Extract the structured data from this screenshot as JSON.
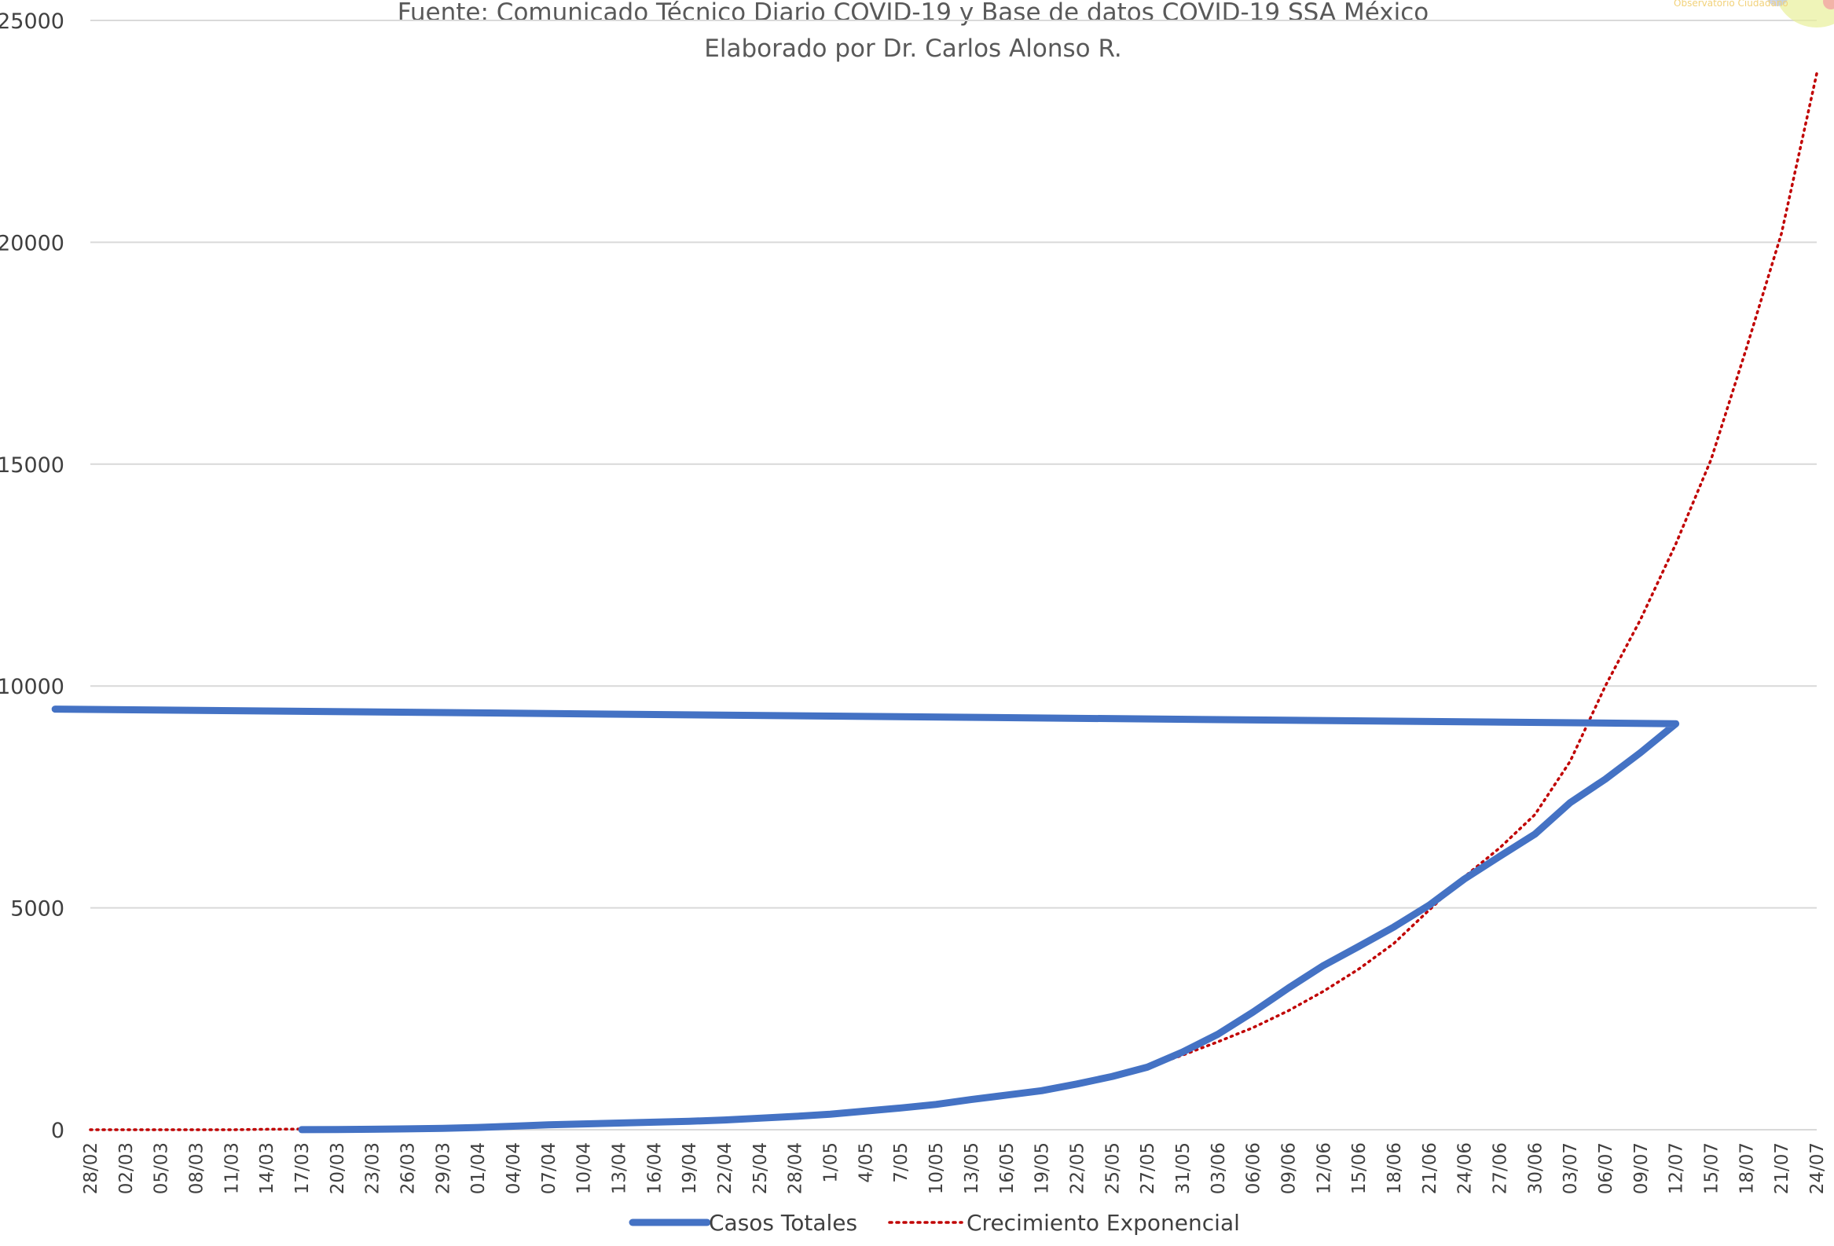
{
  "chart_data": {
    "type": "line",
    "subtitle_lines": [
      "Fuente: Comunicado Técnico Diario COVID-19 y Base de datos COVID-19 SSA México",
      "Elaborado por Dr. Carlos Alonso R."
    ],
    "ylim": [
      0,
      25000
    ],
    "yticks": [
      0,
      5000,
      10000,
      15000,
      20000,
      25000
    ],
    "grid": true,
    "legend_position": "bottom",
    "x_tick_labels": [
      "28/02",
      "02/03",
      "05/03",
      "08/03",
      "11/03",
      "14/03",
      "17/03",
      "20/03",
      "23/03",
      "26/03",
      "29/03",
      "01/04",
      "04/04",
      "07/04",
      "10/04",
      "13/04",
      "16/04",
      "19/04",
      "22/04",
      "25/04",
      "28/04",
      "1/05",
      "4/05",
      "7/05",
      "10/05",
      "13/05",
      "16/05",
      "19/05",
      "22/05",
      "25/05",
      "27/05",
      "31/05",
      "03/06",
      "06/06",
      "09/06",
      "12/06",
      "15/06",
      "18/06",
      "21/06",
      "24/06",
      "27/06",
      "30/06",
      "03/07",
      "06/07",
      "09/07",
      "12/07",
      "15/07",
      "18/07",
      "21/07",
      "24/07"
    ],
    "series": [
      {
        "name": "Casos Totales",
        "color": "#4472C4",
        "style": "solid",
        "points": [
          {
            "x": "17/03",
            "y": 2
          },
          {
            "x": "20/03",
            "y": 5
          },
          {
            "x": "23/03",
            "y": 10
          },
          {
            "x": "26/03",
            "y": 20
          },
          {
            "x": "29/03",
            "y": 30
          },
          {
            "x": "01/04",
            "y": 50
          },
          {
            "x": "04/04",
            "y": 80
          },
          {
            "x": "07/04",
            "y": 110
          },
          {
            "x": "10/04",
            "y": 130
          },
          {
            "x": "13/04",
            "y": 150
          },
          {
            "x": "16/04",
            "y": 170
          },
          {
            "x": "19/04",
            "y": 190
          },
          {
            "x": "22/04",
            "y": 220
          },
          {
            "x": "25/04",
            "y": 260
          },
          {
            "x": "28/04",
            "y": 300
          },
          {
            "x": "1/05",
            "y": 350
          },
          {
            "x": "4/05",
            "y": 420
          },
          {
            "x": "7/05",
            "y": 490
          },
          {
            "x": "10/05",
            "y": 570
          },
          {
            "x": "13/05",
            "y": 680
          },
          {
            "x": "16/05",
            "y": 780
          },
          {
            "x": "19/05",
            "y": 880
          },
          {
            "x": "22/05",
            "y": 1030
          },
          {
            "x": "25/05",
            "y": 1200
          },
          {
            "x": "27/05",
            "y": 1410
          },
          {
            "x": "31/05",
            "y": 1750
          },
          {
            "x": "03/06",
            "y": 2150
          },
          {
            "x": "06/06",
            "y": 2650
          },
          {
            "x": "09/06",
            "y": 3190
          },
          {
            "x": "12/06",
            "y": 3700
          },
          {
            "x": "15/06",
            "y": 4130
          },
          {
            "x": "18/06",
            "y": 4570
          },
          {
            "x": "21/06",
            "y": 5060
          },
          {
            "x": "24/06",
            "y": 5650
          },
          {
            "x": "27/06",
            "y": 6160
          },
          {
            "x": "30/06",
            "y": 6660
          },
          {
            "x": "03/07",
            "y": 7370
          },
          {
            "x": "06/07",
            "y": 7900
          },
          {
            "x": "09/07",
            "y": 8500
          },
          {
            "x": "12/07",
            "y": 9150
          },
          {
            "x": "14/07",
            "y": 9480
          }
        ]
      },
      {
        "name": "Crecimiento Exponencial",
        "color": "#C00000",
        "style": "dotted",
        "points": [
          {
            "x": "28/02",
            "y": 0
          },
          {
            "x": "02/03",
            "y": 0
          },
          {
            "x": "05/03",
            "y": 0
          },
          {
            "x": "08/03",
            "y": 0
          },
          {
            "x": "11/03",
            "y": 0
          },
          {
            "x": "14/03",
            "y": 10
          },
          {
            "x": "17/03",
            "y": 15
          },
          {
            "x": "20/03",
            "y": 20
          },
          {
            "x": "23/03",
            "y": 25
          },
          {
            "x": "26/03",
            "y": 30
          },
          {
            "x": "29/03",
            "y": 40
          },
          {
            "x": "01/04",
            "y": 50
          },
          {
            "x": "04/04",
            "y": 60
          },
          {
            "x": "07/04",
            "y": 75
          },
          {
            "x": "10/04",
            "y": 95
          },
          {
            "x": "13/04",
            "y": 120
          },
          {
            "x": "16/04",
            "y": 150
          },
          {
            "x": "19/04",
            "y": 175
          },
          {
            "x": "22/04",
            "y": 210
          },
          {
            "x": "25/04",
            "y": 250
          },
          {
            "x": "28/04",
            "y": 290
          },
          {
            "x": "1/05",
            "y": 340
          },
          {
            "x": "4/05",
            "y": 400
          },
          {
            "x": "7/05",
            "y": 470
          },
          {
            "x": "10/05",
            "y": 560
          },
          {
            "x": "13/05",
            "y": 660
          },
          {
            "x": "16/05",
            "y": 770
          },
          {
            "x": "19/05",
            "y": 890
          },
          {
            "x": "22/05",
            "y": 1030
          },
          {
            "x": "25/05",
            "y": 1200
          },
          {
            "x": "27/05",
            "y": 1400
          },
          {
            "x": "31/05",
            "y": 1680
          },
          {
            "x": "03/06",
            "y": 1980
          },
          {
            "x": "06/06",
            "y": 2300
          },
          {
            "x": "09/06",
            "y": 2680
          },
          {
            "x": "12/06",
            "y": 3120
          },
          {
            "x": "15/06",
            "y": 3620
          },
          {
            "x": "18/06",
            "y": 4200
          },
          {
            "x": "21/06",
            "y": 4950
          },
          {
            "x": "24/06",
            "y": 5700
          },
          {
            "x": "27/06",
            "y": 6350
          },
          {
            "x": "30/06",
            "y": 7100
          },
          {
            "x": "03/07",
            "y": 8300
          },
          {
            "x": "06/07",
            "y": 10000
          },
          {
            "x": "09/07",
            "y": 11500
          },
          {
            "x": "12/07",
            "y": 13200
          },
          {
            "x": "15/07",
            "y": 15100
          },
          {
            "x": "18/07",
            "y": 17600
          },
          {
            "x": "21/07",
            "y": 20200
          },
          {
            "x": "24/07",
            "y": 23800
          }
        ]
      }
    ]
  }
}
